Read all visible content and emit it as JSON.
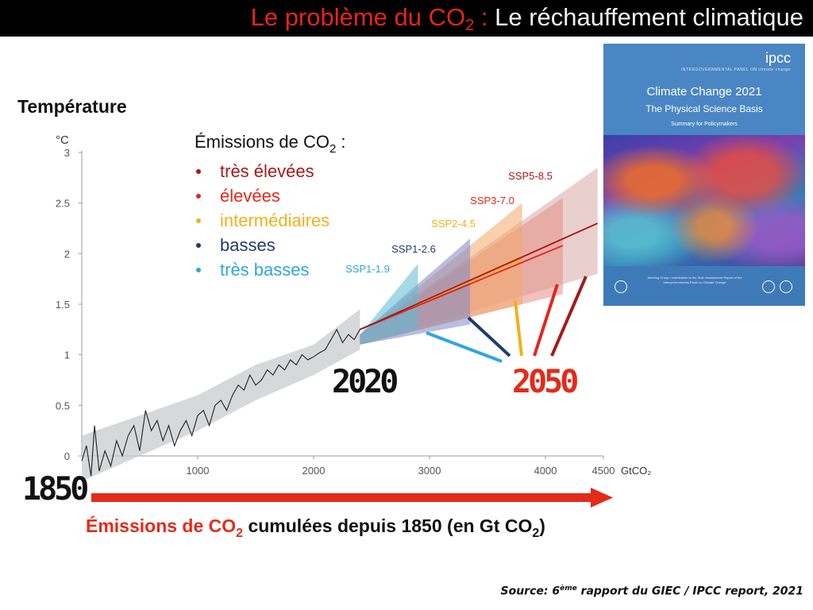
{
  "slide": {
    "title_part1": "Le problème du CO",
    "title_sub": "2",
    "title_part2": " : ",
    "title_part3": "Le réchauffement climatique",
    "source_part1": "Source: 6",
    "source_sup": "ème",
    "source_part2": " rapport du GIEC / IPCC report, 2021"
  },
  "report_cover": {
    "org": "ipcc",
    "org_line": "INTERGOVERNMENTAL PANEL ON climate change",
    "title": "Climate Change 2021",
    "subtitle": "The Physical Science Basis",
    "small": "Summary for Policymakers",
    "wg_text": "Working Group I contribution to the Sixth Assessment Report of the Intergovernmental Panel on Climate Change"
  },
  "colors": {
    "ssp1_19": "#2ea7e0",
    "ssp1_26": "#1d3b6e",
    "ssp2_45": "#f2b01e",
    "ssp3_70": "#e3261c",
    "ssp5_85": "#a81818",
    "arrow": "#e32b1a",
    "title_red": "#e8241c"
  },
  "chart_data": {
    "type": "line",
    "title": "Température",
    "ylabel": "°C",
    "xunit": "GtCO₂",
    "ylim": [
      0,
      3
    ],
    "xlim": [
      0,
      4500
    ],
    "yticks": [
      "0",
      "0.5",
      "1",
      "1.5",
      "2",
      "2.5",
      "3"
    ],
    "xticks": [
      "1000",
      "2000",
      "3000",
      "4000",
      "4500"
    ],
    "legend_title_main": "Émissions de CO",
    "legend_title_sub": "2",
    "legend_title_end": " :",
    "legend": [
      {
        "label": "très élevées",
        "color": "#a81818"
      },
      {
        "label": "élevées",
        "color": "#e3261c"
      },
      {
        "label": "intermédiaires",
        "color": "#f2b01e"
      },
      {
        "label": "basses",
        "color": "#1d3b6e"
      },
      {
        "label": "très basses",
        "color": "#2ea7e0"
      }
    ],
    "historical": {
      "name": "",
      "x": [
        0,
        40,
        80,
        110,
        150,
        200,
        250,
        300,
        350,
        400,
        450,
        500,
        550,
        600,
        650,
        700,
        750,
        800,
        850,
        900,
        950,
        1000,
        1050,
        1100,
        1150,
        1200,
        1250,
        1300,
        1350,
        1400,
        1450,
        1500,
        1550,
        1600,
        1650,
        1700,
        1750,
        1800,
        1850,
        1900,
        1950,
        2000,
        2050,
        2100,
        2150,
        2200,
        2250,
        2300,
        2350,
        2400
      ],
      "y": [
        -0.05,
        0.1,
        -0.2,
        0.3,
        -0.15,
        0.05,
        -0.1,
        0.15,
        0.0,
        0.2,
        0.3,
        0.05,
        0.45,
        0.25,
        0.35,
        0.15,
        0.3,
        0.1,
        0.25,
        0.35,
        0.2,
        0.4,
        0.45,
        0.3,
        0.5,
        0.55,
        0.45,
        0.6,
        0.7,
        0.65,
        0.8,
        0.7,
        0.75,
        0.85,
        0.8,
        0.9,
        0.85,
        0.95,
        0.9,
        1.0,
        0.95,
        0.98,
        1.02,
        1.05,
        1.15,
        1.25,
        1.12,
        1.2,
        1.15,
        1.25
      ]
    },
    "historical_band": {
      "x": [
        0,
        500,
        1000,
        1500,
        2000,
        2400
      ],
      "lower": [
        -0.25,
        0.0,
        0.25,
        0.55,
        0.8,
        1.05
      ],
      "upper": [
        0.2,
        0.4,
        0.6,
        0.9,
        1.1,
        1.45
      ]
    },
    "scenarios": [
      {
        "name": "SSP1-1.9",
        "x": [
          2400,
          2900
        ],
        "y": [
          1.25,
          1.5
        ],
        "x_max": 2900,
        "lower": 1.25,
        "upper": 1.9
      },
      {
        "name": "SSP1-2.6",
        "x": [
          2400,
          3350
        ],
        "y": [
          1.25,
          1.7
        ],
        "x_max": 3350,
        "lower": 1.3,
        "upper": 2.15
      },
      {
        "name": "SSP2-4.5",
        "x": [
          2400,
          3800
        ],
        "y": [
          1.25,
          1.95
        ],
        "x_max": 3800,
        "lower": 1.5,
        "upper": 2.5
      },
      {
        "name": "SSP3-7.0",
        "x": [
          2400,
          4150
        ],
        "y": [
          1.25,
          2.08
        ],
        "x_max": 4150,
        "lower": 1.6,
        "upper": 2.55
      },
      {
        "name": "SSP5-8.5",
        "x": [
          2400,
          4450
        ],
        "y": [
          1.25,
          2.3
        ],
        "x_max": 4450,
        "lower": 1.8,
        "upper": 2.85
      }
    ],
    "annotations": {
      "year_start": "1850",
      "year_mid": "2020",
      "year_end": "2050",
      "axis_caption_main": "Émissions de CO",
      "axis_caption_sub": "2",
      "axis_caption_rest": " cumulées depuis 1850 (en Gt CO",
      "axis_caption_sub2": "2",
      "axis_caption_end": ")"
    }
  }
}
